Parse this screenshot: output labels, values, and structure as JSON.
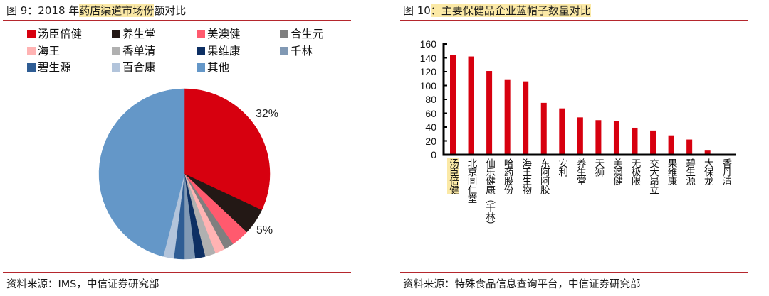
{
  "left": {
    "title_prefix": "图 9：2018 年",
    "title_highlight": "药店渠道市场份",
    "title_suffix": "额对比",
    "source": "资料来源：IMS，中信证券研究部"
  },
  "right": {
    "title_prefix": "图 10",
    "title_highlight": "：主要保健品企业蓝帽子数量对比",
    "source": "资料来源：特殊食品信息查询平台，中信证券研究部"
  },
  "colors": {
    "accent_rule": "#b5272d",
    "bar": "#d7000f",
    "highlight": "#fbe9a6"
  },
  "chart_data": [
    {
      "type": "pie",
      "title": "2018 年药店渠道市场份额对比",
      "start_angle": "12 o'clock, clockwise",
      "legend_position": "top",
      "slices": [
        {
          "label": "汤臣倍健",
          "value": 32,
          "color": "#d7000f",
          "data_label": "32%"
        },
        {
          "label": "养生堂",
          "value": 5,
          "color": "#231815",
          "data_label": "5%"
        },
        {
          "label": "美澳健",
          "value": 3.4,
          "color": "#ff5a6e"
        },
        {
          "label": "合生元",
          "value": 1.8,
          "color": "#7f7f7f"
        },
        {
          "label": "海王",
          "value": 1.9,
          "color": "#ffb3b3"
        },
        {
          "label": "香单清",
          "value": 2.0,
          "color": "#b0b0b0"
        },
        {
          "label": "果维康",
          "value": 1.9,
          "color": "#0d2f63"
        },
        {
          "label": "千林",
          "value": 2.0,
          "color": "#8199b4"
        },
        {
          "label": "碧生源",
          "value": 2.0,
          "color": "#2f5d94"
        },
        {
          "label": "百合康",
          "value": 2.0,
          "color": "#b2c4db"
        },
        {
          "label": "其他",
          "value": 46,
          "color": "#6497c8"
        }
      ]
    },
    {
      "type": "bar",
      "title": "主要保健品企业蓝帽子数量对比",
      "xlabel": "",
      "ylabel": "",
      "ylim": [
        0,
        160
      ],
      "yticks": [
        0,
        20,
        40,
        60,
        80,
        100,
        120,
        140,
        160
      ],
      "grid": false,
      "categories": [
        "汤臣倍健",
        "北京同仁堂",
        "仙乐健康（千林）",
        "哈药股份",
        "海王生物",
        "东阿阿胶",
        "安利",
        "养生堂",
        "天狮",
        "美澳健",
        "无极限",
        "交大昂立",
        "果维康",
        "碧生源",
        "大保龙",
        "香丹清"
      ],
      "values": [
        144,
        142,
        121,
        109,
        106,
        75,
        67,
        54,
        50,
        49,
        39,
        35,
        28,
        22,
        6,
        1
      ],
      "highlighted_category": "汤臣倍健"
    }
  ]
}
